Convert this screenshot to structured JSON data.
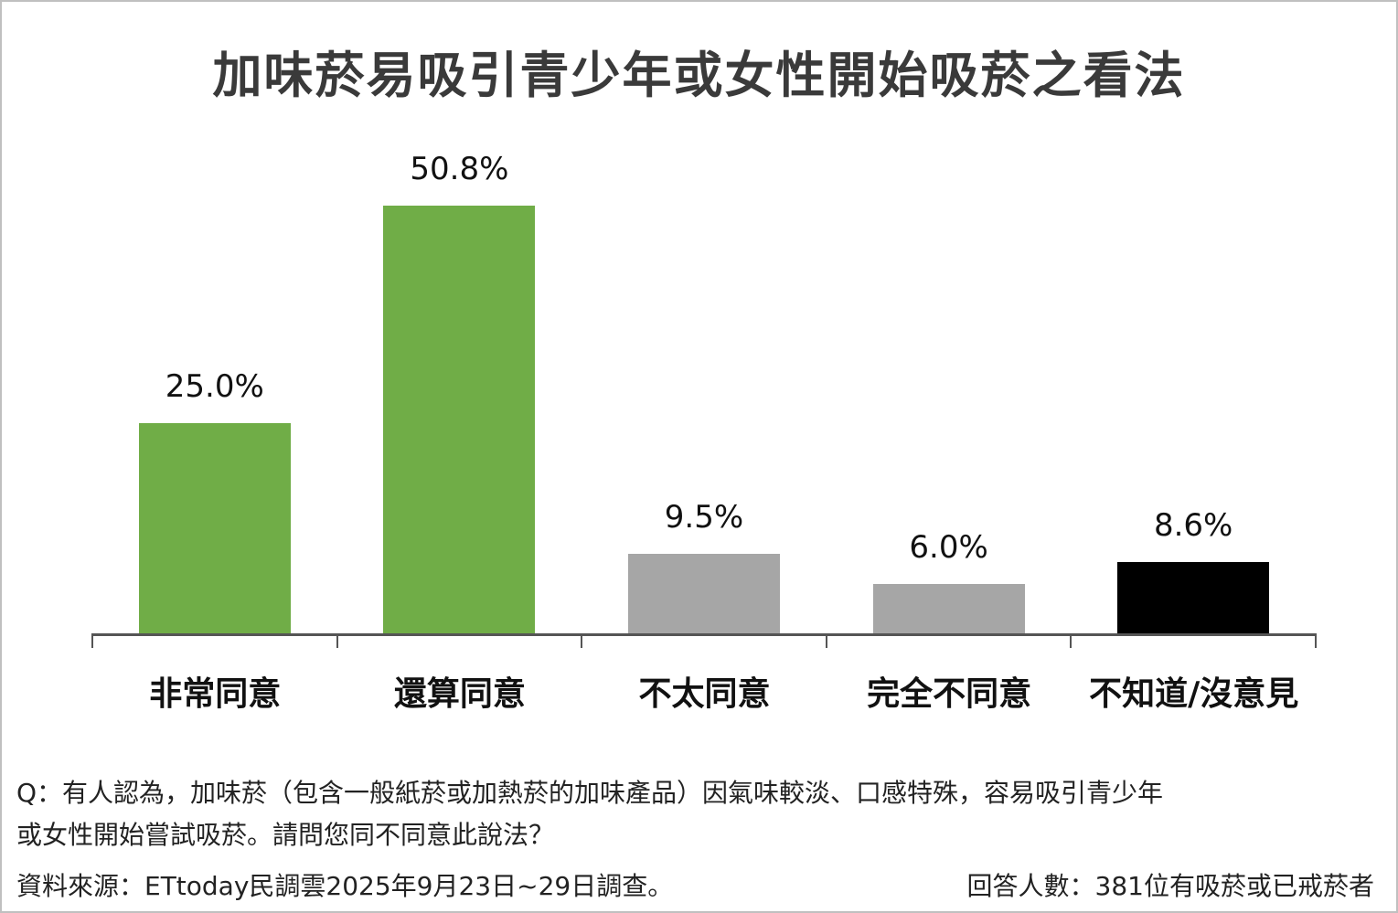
{
  "chart_data": {
    "type": "bar",
    "title": "加味菸易吸引青少年或女性開始吸菸之看法",
    "categories": [
      "非常同意",
      "還算同意",
      "不太同意",
      "完全不同意",
      "不知道/沒意見"
    ],
    "values": [
      25.0,
      50.8,
      9.5,
      6.0,
      8.6
    ],
    "value_labels": [
      "25.0%",
      "50.8%",
      "9.5%",
      "6.0%",
      "8.6%"
    ],
    "colors": [
      "#70AD47",
      "#70AD47",
      "#A6A6A6",
      "#A6A6A6",
      "#000000"
    ],
    "xlabel": "",
    "ylabel": "",
    "ylim": [
      0,
      60
    ],
    "grid": false,
    "legend": "none"
  },
  "notes": {
    "question_line1": "Q：有人認為，加味菸（包含一般紙菸或加熱菸的加味產品）因氣味較淡、口感特殊，容易吸引青少年",
    "question_line2": "或女性開始嘗試吸菸。請問您同不同意此說法？",
    "source": "資料來源：ETtoday民調雲2025年9月23日~29日調查。",
    "respondents": "回答人數：381位有吸菸或已戒菸者"
  }
}
